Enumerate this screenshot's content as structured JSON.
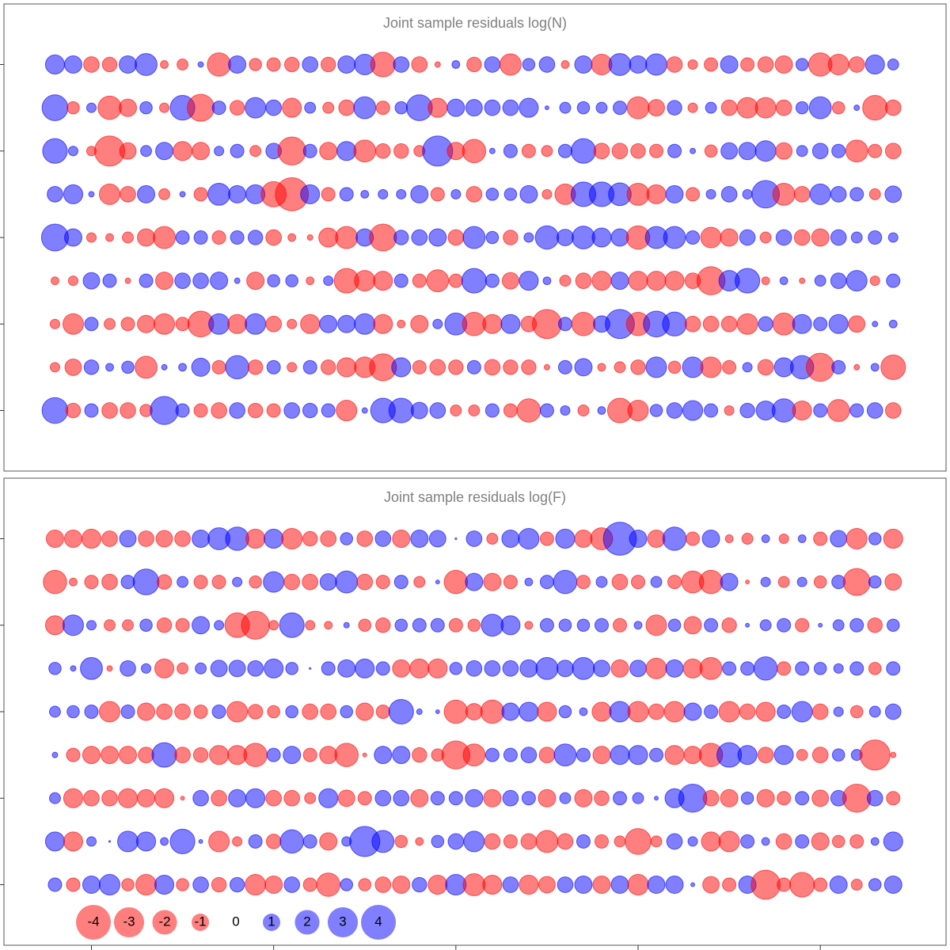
{
  "chart_data": [
    {
      "type": "bubble",
      "title": "Joint sample residuals log(N)",
      "colors": {
        "positive": "#0000ff",
        "negative": "#ff0000"
      },
      "x": [
        1,
        2,
        3,
        4,
        5,
        6,
        7,
        8,
        9,
        10,
        11,
        12,
        13,
        14,
        15,
        16,
        17,
        18,
        19,
        20,
        21,
        22,
        23,
        24,
        25,
        26,
        27,
        28,
        29,
        30,
        31,
        32,
        33,
        34,
        35,
        36,
        37,
        38,
        39,
        40,
        41,
        42,
        43,
        44,
        45,
        46,
        47
      ],
      "y": [
        9,
        8,
        7,
        6,
        5,
        4,
        3,
        2,
        1
      ],
      "xlim": [
        -1.8,
        49.9
      ],
      "ylim": [
        -0.4,
        10.4
      ],
      "yticks": [
        1,
        3,
        5,
        7,
        9
      ],
      "values": [
        [
          1.2,
          1.0,
          -0.8,
          -0.7,
          1.0,
          1.6,
          -0.2,
          -0.4,
          0.1,
          -1.8,
          1.0,
          -0.5,
          -0.6,
          -0.7,
          0.8,
          -0.7,
          1.0,
          1.4,
          -2.0,
          0.8,
          -0.8,
          -0.1,
          0.2,
          -0.7,
          0.8,
          -1.5,
          0.5,
          0.8,
          -0.2,
          1.0,
          -1.4,
          1.6,
          1.0,
          1.5,
          -0.8,
          -0.3,
          -0.6,
          1.0,
          -0.6,
          -0.8,
          -1.0,
          0.5,
          -1.8,
          -1.4,
          -0.8,
          1.2,
          0.4
        ],
        [
          2.2,
          -0.5,
          0.3,
          -1.8,
          -1.0,
          0.5,
          -0.3,
          2.0,
          -2.4,
          0.6,
          -0.7,
          1.4,
          0.8,
          -1.2,
          0.4,
          -0.4,
          -0.8,
          1.6,
          -0.6,
          0.5,
          2.2,
          -1.2,
          1.0,
          0.9,
          0.8,
          0.8,
          1.2,
          0.05,
          0.4,
          0.5,
          0.4,
          0.6,
          -1.6,
          -0.9,
          0.7,
          -0.3,
          0.4,
          -0.8,
          -1.4,
          -1.4,
          -0.8,
          0.5,
          1.6,
          -0.5,
          0.1,
          -2.0,
          -0.8
        ],
        [
          2.0,
          0.3,
          -0.3,
          -3.0,
          -0.9,
          0.4,
          1.0,
          -1.2,
          -1.0,
          0.3,
          0.6,
          -0.4,
          0.8,
          -2.6,
          0.6,
          -1.0,
          1.2,
          -1.6,
          -0.7,
          -0.7,
          -0.4,
          3.0,
          -1.0,
          -1.8,
          0.1,
          0.6,
          -0.6,
          -0.4,
          0.6,
          2.0,
          -0.8,
          -0.8,
          -0.7,
          -0.6,
          0.6,
          0.1,
          -0.5,
          0.9,
          1.0,
          1.4,
          -0.9,
          0.4,
          0.8,
          0.6,
          -1.6,
          -0.6,
          -0.8
        ],
        [
          0.8,
          1.2,
          0.1,
          -1.4,
          -0.8,
          1.0,
          -0.4,
          0.1,
          -0.6,
          1.6,
          1.0,
          1.2,
          -2.1,
          -3.6,
          1.2,
          -0.6,
          0.6,
          0.2,
          0.3,
          0.3,
          1.0,
          -0.6,
          0.3,
          -0.8,
          0.5,
          0.5,
          1.0,
          -0.3,
          -1.4,
          2.0,
          2.0,
          1.7,
          -1.6,
          -1.2,
          1.0,
          -0.6,
          0.3,
          0.8,
          0.3,
          2.5,
          -1.6,
          -0.8,
          1.4,
          0.8,
          0.6,
          -0.4,
          0.9
        ],
        [
          2.4,
          1.0,
          -0.3,
          -0.2,
          -0.4,
          -1.0,
          -1.6,
          0.6,
          0.6,
          -0.6,
          0.6,
          0.7,
          -0.8,
          -0.2,
          -0.1,
          -1.2,
          -1.6,
          1.0,
          -2.4,
          0.7,
          0.8,
          1.0,
          -0.8,
          1.6,
          0.5,
          -0.7,
          0.3,
          1.8,
          0.9,
          1.7,
          1.2,
          1.0,
          -1.8,
          1.6,
          1.6,
          0.6,
          -1.4,
          -1.0,
          0.8,
          -0.4,
          0.8,
          -0.8,
          -1.0,
          0.8,
          0.4,
          0.6,
          0.3
        ],
        [
          -0.2,
          -0.3,
          0.9,
          0.6,
          -0.1,
          0.6,
          -1.0,
          0.8,
          0.8,
          1.0,
          0.1,
          -1.0,
          0.5,
          0.5,
          -0.2,
          0.3,
          -2.0,
          -1.4,
          -1.2,
          0.6,
          -0.6,
          -1.6,
          -0.6,
          2.0,
          0.6,
          -0.9,
          1.2,
          0.2,
          -0.4,
          -0.8,
          -1.2,
          1.0,
          -1.2,
          -1.2,
          -1.2,
          -0.8,
          -2.6,
          1.4,
          2.0,
          -0.2,
          0.2,
          -0.1,
          0.4,
          0.8,
          1.4,
          -0.3,
          0.6
        ],
        [
          -0.3,
          -1.4,
          0.6,
          -0.4,
          -0.6,
          -1.0,
          -1.4,
          -0.6,
          -2.2,
          1.4,
          -1.2,
          1.4,
          -0.8,
          -0.3,
          -1.2,
          1.0,
          1.0,
          1.4,
          -1.2,
          -0.2,
          -1.0,
          0.3,
          1.6,
          -1.8,
          -1.2,
          1.2,
          -0.8,
          -2.8,
          0.6,
          -1.8,
          0.9,
          2.8,
          -1.8,
          2.2,
          1.9,
          -0.8,
          -0.8,
          -0.8,
          -1.4,
          0.7,
          -1.6,
          1.2,
          0.6,
          1.2,
          -0.9,
          0.1,
          0.2
        ],
        [
          -0.3,
          -0.9,
          0.7,
          0.2,
          0.5,
          -1.6,
          0.1,
          0.2,
          1.1,
          -0.6,
          1.8,
          -0.7,
          0.6,
          -0.3,
          0.6,
          -0.7,
          -1.2,
          -1.4,
          -2.4,
          1.2,
          -0.6,
          -0.8,
          -0.7,
          0.6,
          -0.8,
          -0.7,
          -0.7,
          -0.1,
          0.6,
          1.0,
          -0.2,
          -0.4,
          -0.7,
          1.4,
          -0.5,
          1.4,
          -1.4,
          -0.6,
          0.3,
          -0.8,
          1.2,
          1.8,
          -2.6,
          0.6,
          -0.1,
          0.2,
          -2.0
        ],
        [
          2.2,
          -0.7,
          0.6,
          -0.8,
          -0.8,
          -0.5,
          2.6,
          0.6,
          -0.6,
          -0.8,
          0.8,
          -0.7,
          -0.6,
          0.8,
          0.7,
          0.6,
          -1.4,
          0.1,
          2.0,
          2.0,
          0.9,
          0.8,
          -0.4,
          -0.4,
          0.6,
          -0.6,
          -1.8,
          0.6,
          0.3,
          -0.4,
          0.2,
          -2.0,
          -1.4,
          0.5,
          0.8,
          1.3,
          0.6,
          -0.3,
          0.7,
          1.2,
          1.8,
          -1.2,
          0.6,
          -1.6,
          0.6,
          0.8,
          -0.8
        ]
      ]
    },
    {
      "type": "bubble",
      "title": "Joint sample residuals log(F)",
      "colors": {
        "positive": "#0000ff",
        "negative": "#ff0000"
      },
      "x": [
        1,
        2,
        3,
        4,
        5,
        6,
        7,
        8,
        9,
        10,
        11,
        12,
        13,
        14,
        15,
        16,
        17,
        18,
        19,
        20,
        21,
        22,
        23,
        24,
        25,
        26,
        27,
        28,
        29,
        30,
        31,
        32,
        33,
        34,
        35,
        36,
        37,
        38,
        39,
        40,
        41,
        42,
        43,
        44,
        45,
        46,
        47
      ],
      "y": [
        9,
        8,
        7,
        6,
        5,
        4,
        3,
        2,
        1
      ],
      "xlim": [
        -1.8,
        49.9
      ],
      "ylim": [
        -0.4,
        10.4
      ],
      "xticks": [
        3,
        13,
        23,
        33,
        43
      ],
      "yticks": [
        1,
        3,
        5,
        7,
        9
      ],
      "legend": {
        "values": [
          -4,
          -3,
          -2,
          -1,
          0,
          1,
          2,
          3,
          4
        ]
      },
      "values": [
        [
          -1.0,
          -1.0,
          -1.2,
          -0.8,
          0.9,
          -0.8,
          -0.9,
          -0.8,
          1.0,
          1.6,
          1.8,
          -1.2,
          1.2,
          -1.4,
          -0.7,
          -0.8,
          0.5,
          -0.8,
          0.8,
          -1.0,
          1.0,
          0.9,
          0.01,
          0.8,
          -0.4,
          1.0,
          1.4,
          -0.6,
          1.2,
          -1.0,
          -1.6,
          3.6,
          1.0,
          -1.0,
          1.8,
          -0.6,
          1.0,
          -0.2,
          -0.4,
          0.2,
          -0.3,
          0.2,
          -0.6,
          0.9,
          -1.4,
          0.5,
          -1.2
        ],
        [
          -1.8,
          -0.2,
          -0.6,
          -0.8,
          0.6,
          2.2,
          -0.7,
          0.4,
          -0.6,
          -0.6,
          0.3,
          -0.5,
          1.4,
          -0.8,
          -0.8,
          0.9,
          1.6,
          -0.8,
          -0.6,
          0.6,
          -0.4,
          0.05,
          -1.8,
          1.0,
          -1.0,
          -0.6,
          0.2,
          0.6,
          1.8,
          -0.6,
          0.4,
          -0.8,
          -0.6,
          0.4,
          -0.6,
          -1.6,
          -1.8,
          1.0,
          -0.05,
          0.3,
          -0.4,
          0.3,
          -0.5,
          0.6,
          -2.4,
          0.5,
          -0.9
        ],
        [
          -1.2,
          1.4,
          0.3,
          -0.4,
          -0.4,
          0.5,
          -0.7,
          -0.6,
          1.0,
          0.3,
          -2.0,
          -2.6,
          -0.3,
          2.0,
          -0.3,
          -0.2,
          0.1,
          -0.5,
          -0.7,
          0.5,
          0.6,
          0.6,
          -0.6,
          -0.5,
          1.6,
          1.2,
          -0.2,
          0.6,
          0.5,
          0.5,
          0.6,
          -0.6,
          0.2,
          -1.4,
          0.5,
          -1.0,
          0.6,
          -0.7,
          0.05,
          0.4,
          0.6,
          -0.6,
          0.05,
          0.4,
          0.6,
          -0.7,
          0.5
        ],
        [
          0.5,
          0.1,
          1.6,
          -0.1,
          0.8,
          0.3,
          -1.2,
          -0.4,
          0.4,
          0.9,
          0.9,
          0.8,
          1.2,
          0.5,
          0.01,
          0.6,
          1.0,
          1.2,
          0.6,
          -1.0,
          -1.2,
          -1.2,
          0.5,
          0.8,
          0.8,
          0.8,
          1.0,
          1.6,
          0.9,
          1.6,
          0.9,
          -1.0,
          0.9,
          -1.4,
          1.0,
          -1.2,
          -1.6,
          0.6,
          0.6,
          1.8,
          -0.6,
          0.6,
          0.5,
          0.3,
          0.6,
          -0.5,
          0.6
        ],
        [
          0.4,
          0.5,
          0.6,
          -1.4,
          0.6,
          -1.0,
          -0.8,
          -0.8,
          -0.6,
          0.6,
          -1.4,
          -0.7,
          -0.5,
          0.5,
          -0.8,
          -0.8,
          0.5,
          -1.0,
          -0.6,
          2.0,
          0.1,
          0.05,
          -1.8,
          -0.9,
          -1.8,
          1.0,
          1.2,
          -1.2,
          0.5,
          0.2,
          -1.2,
          1.4,
          -1.4,
          -0.8,
          -1.4,
          1.0,
          0.6,
          -1.4,
          -0.8,
          -1.2,
          0.6,
          1.4,
          -0.8,
          0.3,
          -0.5,
          0.4,
          0.8
        ],
        [
          0.1,
          -0.6,
          -1.0,
          -1.0,
          -1.0,
          -0.8,
          2.0,
          -0.8,
          -0.7,
          -1.2,
          -1.2,
          -1.8,
          0.6,
          1.0,
          -0.6,
          -1.0,
          -1.8,
          -0.05,
          1.0,
          1.0,
          -0.7,
          -0.5,
          -2.6,
          -1.6,
          0.6,
          0.6,
          0.8,
          -0.8,
          1.6,
          0.6,
          -1.0,
          1.2,
          1.2,
          0.6,
          -1.2,
          -1.0,
          -1.8,
          2.0,
          1.2,
          -0.8,
          1.2,
          -0.4,
          -0.8,
          0.5,
          0.4,
          -3.0,
          -0.1
        ],
        [
          0.4,
          -1.2,
          -0.8,
          -0.8,
          -1.2,
          -1.0,
          -1.2,
          -0.05,
          0.8,
          -0.8,
          1.0,
          1.2,
          -0.8,
          -0.8,
          -0.4,
          1.2,
          -0.9,
          -0.6,
          0.8,
          0.8,
          -1.0,
          0.6,
          0.6,
          1.0,
          -1.0,
          0.8,
          0.6,
          -1.0,
          0.4,
          -1.0,
          -0.7,
          0.6,
          0.4,
          0.05,
          1.2,
          2.6,
          -0.8,
          -1.0,
          0.5,
          -1.0,
          -0.6,
          0.6,
          -0.9,
          0.8,
          -2.6,
          0.8,
          -0.6
        ],
        [
          1.2,
          -1.2,
          0.3,
          0.01,
          1.4,
          1.2,
          0.2,
          2.0,
          0.05,
          -1.4,
          -0.3,
          0.6,
          -0.7,
          1.8,
          0.6,
          -1.0,
          0.3,
          3.0,
          1.6,
          -0.5,
          -0.2,
          0.5,
          0.8,
          1.4,
          -0.8,
          -0.6,
          -0.8,
          -1.6,
          -0.8,
          0.6,
          -0.6,
          -0.4,
          -2.2,
          -0.4,
          0.8,
          0.3,
          -1.2,
          -1.4,
          0.6,
          0.2,
          -0.8,
          0.6,
          -1.0,
          -0.5,
          -0.6,
          0.2,
          1.2
        ],
        [
          0.6,
          -0.6,
          1.0,
          1.4,
          -0.5,
          -1.4,
          1.2,
          -0.5,
          0.8,
          -0.7,
          0.7,
          -1.4,
          -1.0,
          0.8,
          -0.6,
          -1.8,
          0.5,
          -0.5,
          -0.8,
          -1.0,
          0.7,
          -1.2,
          1.4,
          -1.6,
          -1.2,
          0.8,
          -1.2,
          -0.9,
          0.8,
          1.0,
          -1.0,
          1.0,
          -1.4,
          1.0,
          1.0,
          0.05,
          -0.9,
          -0.6,
          1.0,
          -2.8,
          -0.6,
          -2.0,
          -0.6,
          1.0,
          -0.4,
          0.5,
          1.0
        ]
      ]
    }
  ]
}
